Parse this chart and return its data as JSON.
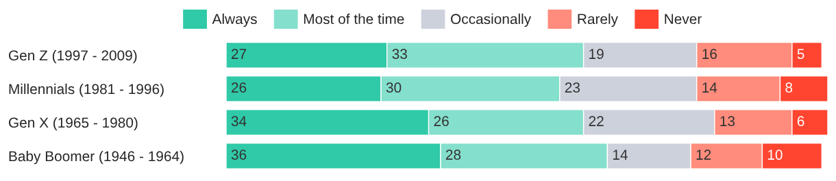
{
  "chart_data": {
    "type": "bar",
    "orientation": "horizontal",
    "stacked": true,
    "data_labels": true,
    "legend": "top",
    "grid": false,
    "tick_labels": "y",
    "categories": [
      "Gen Z (1997 - 2009)",
      "Millennials (1981 - 1996)",
      "Gen X (1965 - 1980)",
      "Baby Boomer (1946 - 1964)"
    ],
    "series": [
      {
        "name": "Always",
        "color": "#30caa8",
        "values": [
          27,
          26,
          34,
          36
        ]
      },
      {
        "name": "Most of the time",
        "color": "#84dfcc",
        "values": [
          33,
          30,
          26,
          28
        ]
      },
      {
        "name": "Occasionally",
        "color": "#cdd1dc",
        "values": [
          19,
          23,
          22,
          14
        ]
      },
      {
        "name": "Rarely",
        "color": "#ff8c7c",
        "values": [
          16,
          14,
          13,
          12
        ]
      },
      {
        "name": "Never",
        "color": "#ff4530",
        "values": [
          5,
          8,
          6,
          10
        ]
      }
    ]
  }
}
